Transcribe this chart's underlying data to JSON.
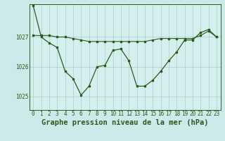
{
  "title": "Graphe pression niveau de la mer (hPa)",
  "background_color": "#cceaea",
  "plot_bg_color": "#d5eeee",
  "grid_color": "#aacccc",
  "line_color": "#2d5a1b",
  "marker_color": "#2d5a1b",
  "xlim": [
    -0.5,
    23.5
  ],
  "ylim": [
    1024.55,
    1028.1
  ],
  "yticks": [
    1025,
    1026,
    1027
  ],
  "xticks": [
    0,
    1,
    2,
    3,
    4,
    5,
    6,
    7,
    8,
    9,
    10,
    11,
    12,
    13,
    14,
    15,
    16,
    17,
    18,
    19,
    20,
    21,
    22,
    23
  ],
  "series1": [
    1028.05,
    1027.0,
    1026.8,
    1026.65,
    1025.85,
    1025.6,
    1025.05,
    1025.35,
    1026.0,
    1026.05,
    1026.55,
    1026.6,
    1026.2,
    1025.35,
    1025.35,
    1025.55,
    1025.85,
    1026.2,
    1026.5,
    1026.9,
    1026.9,
    1027.15,
    1027.25,
    1027.0
  ],
  "series2": [
    1027.05,
    1027.05,
    1027.05,
    1027.0,
    1027.0,
    1026.95,
    1026.9,
    1026.85,
    1026.85,
    1026.85,
    1026.85,
    1026.85,
    1026.85,
    1026.85,
    1026.85,
    1026.9,
    1026.95,
    1026.95,
    1026.95,
    1026.95,
    1026.95,
    1027.05,
    1027.2,
    1027.0
  ],
  "title_fontsize": 7.5,
  "tick_fontsize": 5.5,
  "title_color": "#2d5a1b",
  "tick_color": "#2d5a1b"
}
